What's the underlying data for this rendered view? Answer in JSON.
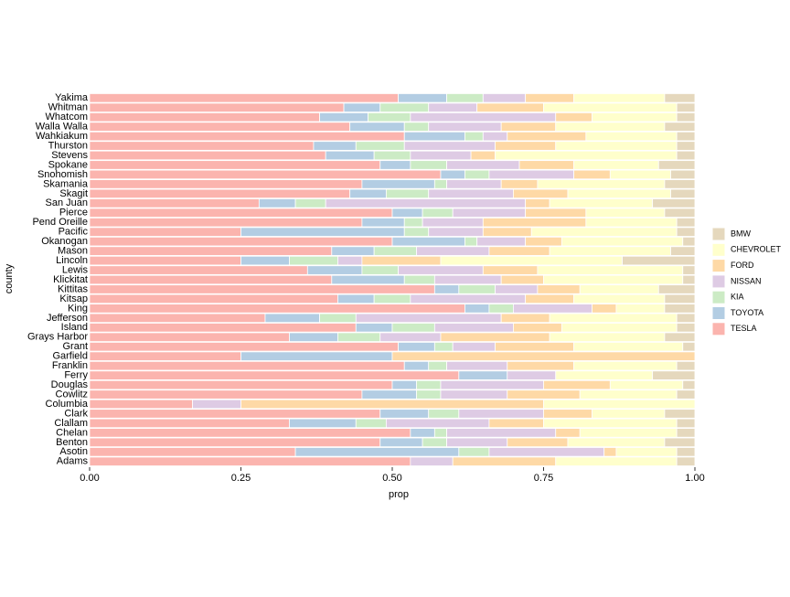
{
  "chart_data": {
    "type": "stacked-barh",
    "xlabel": "prop",
    "ylabel": "county",
    "xlim": [
      0,
      1
    ],
    "xticks": [
      {
        "value": 0,
        "label": "0.00"
      },
      0.25,
      {
        "value": 0.5,
        "label": "0.50"
      },
      0.75,
      {
        "value": 1,
        "label": "1.00"
      }
    ],
    "categories": [
      "Yakima",
      "Whitman",
      "Whatcom",
      "Walla Walla",
      "Wahkiakum",
      "Thurston",
      "Stevens",
      "Spokane",
      "Snohomish",
      "Skamania",
      "Skagit",
      "San Juan",
      "Pierce",
      "Pend Oreille",
      "Pacific",
      "Okanogan",
      "Mason",
      "Lincoln",
      "Lewis",
      "Klickitat",
      "Kittitas",
      "Kitsap",
      "King",
      "Jefferson",
      "Island",
      "Grays Harbor",
      "Grant",
      "Garfield",
      "Franklin",
      "Ferry",
      "Douglas",
      "Cowlitz",
      "Columbia",
      "Clark",
      "Clallam",
      "Chelan",
      "Benton",
      "Asotin",
      "Adams"
    ],
    "series": [
      {
        "name": "TESLA",
        "color": "#FBB4AE",
        "values": [
          0.51,
          0.42,
          0.38,
          0.43,
          0.52,
          0.37,
          0.39,
          0.48,
          0.58,
          0.45,
          0.43,
          0.28,
          0.5,
          0.45,
          0.25,
          0.5,
          0.4,
          0.25,
          0.36,
          0.4,
          0.57,
          0.41,
          0.62,
          0.29,
          0.44,
          0.33,
          0.51,
          0.25,
          0.52,
          0.61,
          0.5,
          0.45,
          0.17,
          0.48,
          0.33,
          0.53,
          0.48,
          0.34,
          0.53
        ]
      },
      {
        "name": "TOYOTA",
        "color": "#B3CDE3",
        "values": [
          0.08,
          0.06,
          0.08,
          0.09,
          0.1,
          0.07,
          0.08,
          0.05,
          0.04,
          0.12,
          0.06,
          0.06,
          0.05,
          0.07,
          0.27,
          0.12,
          0.07,
          0.08,
          0.09,
          0.12,
          0.04,
          0.06,
          0.04,
          0.09,
          0.06,
          0.08,
          0.06,
          0.25,
          0.04,
          0.08,
          0.04,
          0.09,
          0,
          0.08,
          0.11,
          0.04,
          0.07,
          0.27,
          0
        ]
      },
      {
        "name": "KIA",
        "color": "#CCEBC5",
        "values": [
          0.06,
          0.08,
          0.07,
          0.04,
          0.03,
          0.08,
          0.06,
          0.06,
          0.04,
          0.02,
          0.07,
          0.05,
          0.05,
          0.03,
          0.04,
          0.02,
          0.07,
          0.08,
          0.06,
          0.05,
          0.06,
          0.06,
          0.04,
          0.06,
          0.07,
          0.07,
          0.03,
          0,
          0.03,
          0,
          0.04,
          0.04,
          0,
          0.05,
          0.05,
          0.02,
          0.04,
          0.05,
          0
        ]
      },
      {
        "name": "NISSAN",
        "color": "#DECBE4",
        "values": [
          0.07,
          0.08,
          0.24,
          0.12,
          0.04,
          0.15,
          0.1,
          0.12,
          0.14,
          0.09,
          0.14,
          0.33,
          0.12,
          0.1,
          0.09,
          0.08,
          0.12,
          0.04,
          0.14,
          0.11,
          0.07,
          0.19,
          0.13,
          0.24,
          0.13,
          0.1,
          0.07,
          0,
          0.1,
          0.08,
          0.17,
          0.11,
          0.08,
          0.14,
          0.17,
          0.18,
          0.1,
          0.19,
          0.07
        ]
      },
      {
        "name": "FORD",
        "color": "#FED9A6",
        "values": [
          0.08,
          0.11,
          0.06,
          0.09,
          0.13,
          0.1,
          0.04,
          0.09,
          0.06,
          0.06,
          0.09,
          0.04,
          0.1,
          0.17,
          0.08,
          0.06,
          0.1,
          0.13,
          0.09,
          0.07,
          0.07,
          0.08,
          0.04,
          0.08,
          0.08,
          0.18,
          0.13,
          0.5,
          0.11,
          0,
          0.11,
          0.12,
          0.5,
          0.08,
          0.09,
          0.04,
          0.1,
          0.02,
          0.17
        ]
      },
      {
        "name": "CHEVROLET",
        "color": "#FFFFCC",
        "values": [
          0.15,
          0.22,
          0.14,
          0.18,
          0.15,
          0.2,
          0.3,
          0.14,
          0.1,
          0.21,
          0.17,
          0.17,
          0.13,
          0.15,
          0.24,
          0.2,
          0.2,
          0.3,
          0.24,
          0.23,
          0.13,
          0.15,
          0.08,
          0.21,
          0.19,
          0.19,
          0.18,
          0,
          0.17,
          0.16,
          0.12,
          0.16,
          0.25,
          0.12,
          0.22,
          0.16,
          0.16,
          0.1,
          0.2
        ]
      },
      {
        "name": "BMW",
        "color": "#E5D8BD",
        "values": [
          0.05,
          0.03,
          0.03,
          0.05,
          0.03,
          0.03,
          0.03,
          0.06,
          0.04,
          0.05,
          0.04,
          0.07,
          0.05,
          0.03,
          0.03,
          0.02,
          0.04,
          0.12,
          0.02,
          0.02,
          0.06,
          0.05,
          0.05,
          0.03,
          0.03,
          0.05,
          0.02,
          0,
          0.03,
          0.07,
          0.02,
          0.03,
          0,
          0.05,
          0.03,
          0.03,
          0.05,
          0.03,
          0.03
        ]
      }
    ]
  }
}
